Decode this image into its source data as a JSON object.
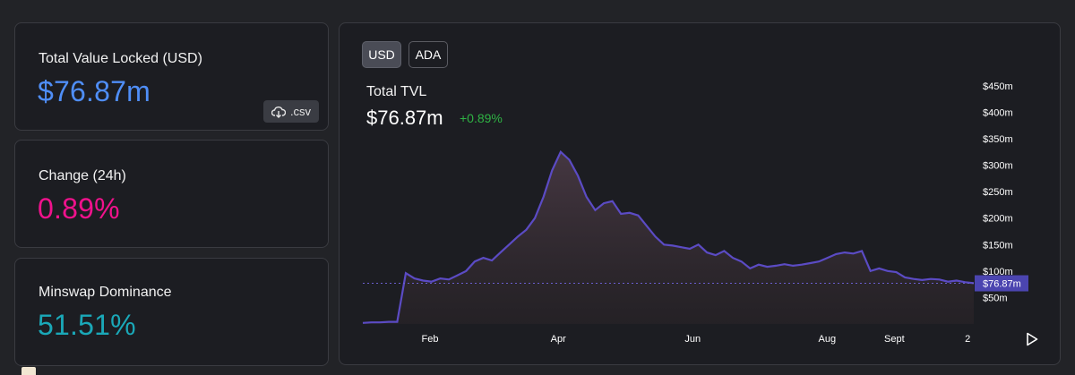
{
  "stats": {
    "tvl": {
      "label": "Total Value Locked (USD)",
      "value": "$76.87m",
      "color": "#4f8ef7"
    },
    "change": {
      "label": "Change (24h)",
      "value": "0.89%",
      "color": "#f0128c"
    },
    "dominance": {
      "label": "Minswap Dominance",
      "value": "51.51%",
      "color": "#1aa8b8"
    }
  },
  "csv_button": {
    "label": ".csv",
    "icon": "cloud-download-icon"
  },
  "toggle": {
    "usd": "USD",
    "ada": "ADA",
    "selected": "USD"
  },
  "chart_header": {
    "title": "Total TVL",
    "value": "$76.87m",
    "change": "+0.89%"
  },
  "chart_data": {
    "type": "area",
    "title": "Total TVL",
    "y_ticks": [
      "$450m",
      "$400m",
      "$350m",
      "$300m",
      "$250m",
      "$200m",
      "$150m",
      "$100m",
      "$50m"
    ],
    "y_tick_values": [
      450,
      400,
      350,
      300,
      250,
      200,
      150,
      100,
      50
    ],
    "ylim": [
      0,
      475
    ],
    "x_ticks": [
      "Feb",
      "Apr",
      "Jun",
      "Aug",
      "Sept",
      "2"
    ],
    "x_tick_positions": [
      0.11,
      0.32,
      0.54,
      0.76,
      0.87,
      0.99
    ],
    "current_value": 76.87,
    "current_label": "$76.87m",
    "series": [
      {
        "values": [
          2,
          3,
          3,
          4,
          4,
          96,
          86,
          82,
          80,
          86,
          84,
          92,
          100,
          118,
          125,
          120,
          135,
          150,
          165,
          178,
          200,
          240,
          290,
          325,
          310,
          280,
          240,
          215,
          228,
          232,
          208,
          210,
          205,
          185,
          165,
          150,
          148,
          145,
          142,
          150,
          135,
          130,
          138,
          125,
          118,
          105,
          112,
          108,
          110,
          113,
          110,
          112,
          115,
          118,
          125,
          132,
          135,
          133,
          138,
          100,
          105,
          100,
          98,
          88,
          85,
          83,
          85,
          84,
          80,
          82,
          79,
          77
        ],
        "color": "#5b4bc4"
      }
    ],
    "grid": false,
    "fill_color": "#3a2f3a"
  }
}
